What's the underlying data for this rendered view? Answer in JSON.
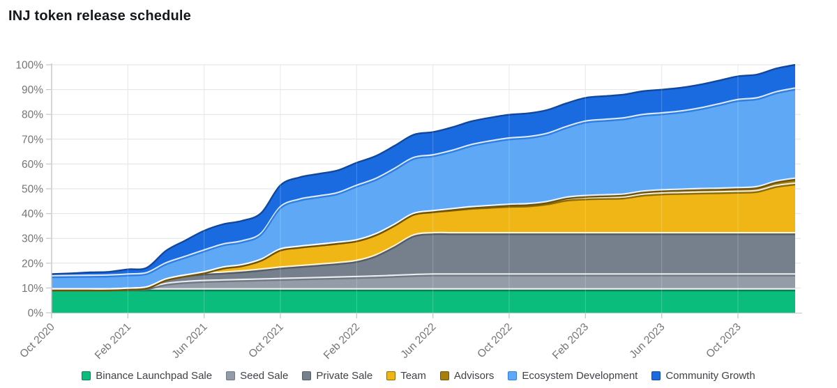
{
  "title": "INJ token release schedule",
  "chart_data": {
    "type": "area",
    "stacked": true,
    "title": "INJ token release schedule",
    "xlabel": "",
    "ylabel": "",
    "ylim": [
      0,
      100
    ],
    "grid": true,
    "legend_position": "bottom",
    "y_tick_labels": [
      "0%",
      "10%",
      "20%",
      "30%",
      "40%",
      "50%",
      "60%",
      "70%",
      "80%",
      "90%",
      "100%"
    ],
    "x_tick_every": 4,
    "x_tick_labels": [
      "Oct 2020",
      "Feb 2021",
      "Jun 2021",
      "Oct 2021",
      "Feb 2022",
      "Jun 2022",
      "Oct 2022",
      "Feb 2023",
      "Jun 2023",
      "Oct 2023"
    ],
    "x": [
      "Oct 2020",
      "Nov 2020",
      "Dec 2020",
      "Jan 2021",
      "Feb 2021",
      "Mar 2021",
      "Apr 2021",
      "May 2021",
      "Jun 2021",
      "Jul 2021",
      "Aug 2021",
      "Sep 2021",
      "Oct 2021",
      "Nov 2021",
      "Dec 2021",
      "Jan 2022",
      "Feb 2022",
      "Mar 2022",
      "Apr 2022",
      "May 2022",
      "Jun 2022",
      "Jul 2022",
      "Aug 2022",
      "Sep 2022",
      "Oct 2022",
      "Nov 2022",
      "Dec 2022",
      "Jan 2023",
      "Feb 2023",
      "Mar 2023",
      "Apr 2023",
      "May 2023",
      "Jun 2023",
      "Jul 2023",
      "Aug 2023",
      "Sep 2023",
      "Oct 2023",
      "Nov 2023",
      "Dec 2023",
      "Jan 2024"
    ],
    "series": [
      {
        "name": "Binance Launchpad Sale",
        "color": "#0abd7c",
        "border": "#0a7e57",
        "final_allocation_pct": 9,
        "values": [
          9,
          9,
          9,
          9,
          9,
          9,
          9,
          9,
          9,
          9,
          9,
          9,
          9,
          9,
          9,
          9,
          9,
          9,
          9,
          9,
          9,
          9,
          9,
          9,
          9,
          9,
          9,
          9,
          9,
          9,
          9,
          9,
          9,
          9,
          9,
          9,
          9,
          9,
          9,
          9
        ]
      },
      {
        "name": "Seed Sale",
        "color": "#939ca7",
        "border": "#6f7885",
        "final_allocation_pct": 6,
        "values": [
          0,
          0,
          0,
          0,
          0.2,
          0.5,
          2.2,
          3,
          3.4,
          3.6,
          3.8,
          4,
          4.2,
          4.4,
          4.6,
          4.8,
          5,
          5.2,
          5.5,
          5.8,
          6,
          6,
          6,
          6,
          6,
          6,
          6,
          6,
          6,
          6,
          6,
          6,
          6,
          6,
          6,
          6,
          6,
          6,
          6,
          6
        ]
      },
      {
        "name": "Private Sale",
        "color": "#76808c",
        "border": "#525c66",
        "final_allocation_pct": 16.67,
        "values": [
          0,
          0,
          0,
          0,
          0.1,
          0.3,
          1.8,
          2.6,
          3,
          3.2,
          3.5,
          4,
          4.6,
          5,
          5.4,
          5.8,
          6.5,
          8.5,
          12,
          16,
          16.67,
          16.67,
          16.67,
          16.67,
          16.67,
          16.67,
          16.67,
          16.67,
          16.67,
          16.67,
          16.67,
          16.67,
          16.67,
          16.67,
          16.67,
          16.67,
          16.67,
          16.67,
          16.67,
          16.67
        ]
      },
      {
        "name": "Team",
        "color": "#f0b616",
        "border": "#8a6b06",
        "final_allocation_pct": 20,
        "values": [
          0,
          0,
          0,
          0,
          0,
          0,
          0,
          0,
          0.5,
          2,
          2.5,
          4,
          7.3,
          7.8,
          8,
          8.2,
          8.3,
          8.5,
          8.6,
          8.7,
          8.8,
          9.5,
          10.2,
          10.6,
          11,
          11.2,
          12,
          13.5,
          14,
          14.2,
          14.4,
          15.5,
          16,
          16.2,
          16.4,
          16.5,
          16.7,
          17,
          19,
          20
        ]
      },
      {
        "name": "Advisors",
        "color": "#a87e0d",
        "border": "#6e5206",
        "final_allocation_pct": 2,
        "values": [
          0,
          0,
          0,
          0,
          0,
          0,
          0,
          0,
          0,
          0,
          0,
          0,
          0,
          0,
          0,
          0,
          0,
          0,
          0,
          0,
          0.1,
          0.2,
          0.3,
          0.4,
          0.5,
          0.55,
          0.6,
          0.8,
          1,
          1.1,
          1.2,
          1.25,
          1.3,
          1.35,
          1.4,
          1.45,
          1.5,
          1.6,
          1.8,
          2
        ]
      },
      {
        "name": "Ecosystem Development",
        "color": "#5fa8f6",
        "border": "#2f7fe0",
        "final_allocation_pct": 36.33,
        "values": [
          5.3,
          5.4,
          5.5,
          5.6,
          5.7,
          5.8,
          6.5,
          7.5,
          8.8,
          9.3,
          9.6,
          10.5,
          17,
          19,
          19.5,
          20,
          22,
          22.3,
          22.5,
          22.5,
          22.5,
          23.5,
          25,
          26,
          26.7,
          27,
          27.5,
          28.5,
          30,
          30.4,
          30.7,
          30.9,
          31,
          31.5,
          32.5,
          34,
          35.5,
          35.8,
          36,
          36.33
        ]
      },
      {
        "name": "Community Growth",
        "color": "#1b6be0",
        "border": "#10489f",
        "final_allocation_pct": 10,
        "values": [
          1.3,
          1.5,
          1.8,
          1.9,
          2.5,
          2.6,
          5.5,
          7,
          8.4,
          8.6,
          8.7,
          8.8,
          9.3,
          9.4,
          9.5,
          9.6,
          9.7,
          9.7,
          9.8,
          9.8,
          9.8,
          9.9,
          10,
          10,
          10,
          10,
          10,
          10,
          10,
          10,
          10,
          10,
          10,
          10,
          10,
          10,
          10,
          10,
          10,
          10
        ]
      }
    ]
  }
}
